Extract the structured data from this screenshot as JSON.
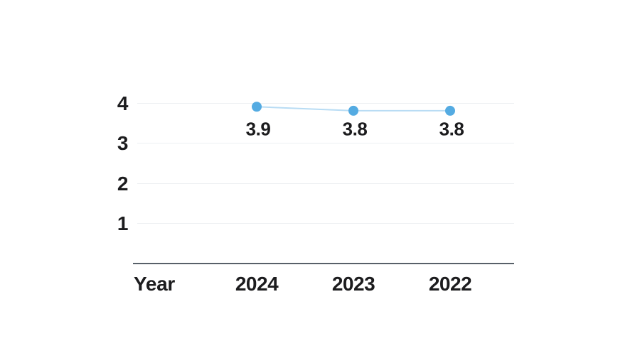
{
  "chart_data": {
    "type": "line",
    "xlabel": "Year",
    "categories": [
      "2024",
      "2023",
      "2022"
    ],
    "values": [
      3.9,
      3.8,
      3.8
    ],
    "point_labels": [
      "3.9",
      "3.8",
      "3.8"
    ],
    "ytick_labels": [
      "4",
      "3",
      "2",
      "1"
    ],
    "ytick_values": [
      4,
      3,
      2,
      1
    ],
    "ylim": [
      0,
      4.4
    ],
    "grid": true,
    "legend": false,
    "colors": {
      "point": "#54abe2",
      "line": "#b8dcf4",
      "gridline": "#edf0f2",
      "axis_line": "#586069",
      "text": "#1c1c1e",
      "background": "#ffffff"
    }
  }
}
